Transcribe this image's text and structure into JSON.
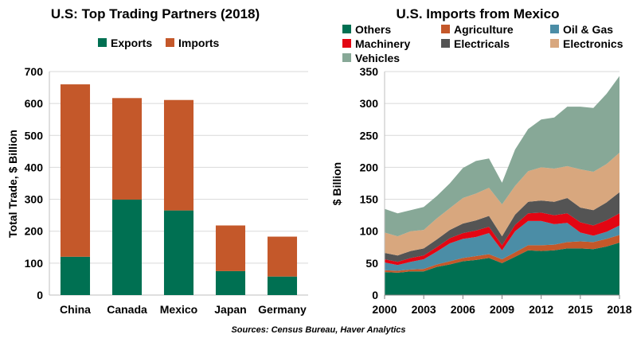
{
  "source": "Sources: Census Bureau, Haver Analytics",
  "chart_data": [
    {
      "type": "bar",
      "stacked": true,
      "title": "U.S: Top Trading Partners (2018)",
      "ylabel": "Total Trade, $ Billion",
      "ylim": [
        0,
        700
      ],
      "yticks": [
        "0",
        "100",
        "200",
        "300",
        "400",
        "500",
        "600",
        "700"
      ],
      "categories": [
        "China",
        "Canada",
        "Mexico",
        "Japan",
        "Germany"
      ],
      "legend_position": "top",
      "grid": "horizontal",
      "series": [
        {
          "name": "Exports",
          "color": "#007052",
          "values": [
            120,
            299,
            265,
            75,
            58
          ]
        },
        {
          "name": "Imports",
          "color": "#C4582A",
          "values": [
            540,
            318,
            346,
            143,
            125
          ]
        }
      ]
    },
    {
      "type": "area",
      "stacked": true,
      "title": "U.S. Imports from Mexico",
      "ylabel": "$ Billion",
      "ylim": [
        0,
        350
      ],
      "yticks": [
        "0",
        "50",
        "100",
        "150",
        "200",
        "250",
        "300",
        "350"
      ],
      "xticks": [
        "2000",
        "2003",
        "2006",
        "2009",
        "2012",
        "2015",
        "2018"
      ],
      "x": [
        2000,
        2001,
        2002,
        2003,
        2004,
        2005,
        2006,
        2007,
        2008,
        2009,
        2010,
        2011,
        2012,
        2013,
        2014,
        2015,
        2016,
        2017,
        2018
      ],
      "legend_position": "top",
      "grid": "horizontal",
      "series": [
        {
          "name": "Others",
          "color": "#007052",
          "values": [
            36,
            35,
            37,
            37,
            44,
            48,
            53,
            55,
            58,
            50,
            60,
            70,
            69,
            70,
            73,
            73,
            72,
            76,
            82
          ]
        },
        {
          "name": "Agriculture",
          "color": "#C4582A",
          "values": [
            3,
            3,
            3,
            4,
            4,
            5,
            5,
            6,
            6,
            6,
            7,
            8,
            9,
            9,
            10,
            11,
            11,
            12,
            12
          ]
        },
        {
          "name": "Oil & Gas",
          "color": "#4B8DA6",
          "values": [
            12,
            9,
            12,
            15,
            20,
            28,
            30,
            30,
            33,
            14,
            33,
            38,
            38,
            32,
            30,
            14,
            10,
            11,
            15
          ]
        },
        {
          "name": "Machinery",
          "color": "#E30613",
          "values": [
            5,
            5,
            6,
            6,
            7,
            8,
            9,
            10,
            10,
            8,
            10,
            12,
            13,
            14,
            15,
            16,
            16,
            18,
            19
          ]
        },
        {
          "name": "Electricals",
          "color": "#545454",
          "values": [
            10,
            10,
            11,
            11,
            12,
            13,
            15,
            16,
            17,
            14,
            16,
            18,
            19,
            21,
            24,
            23,
            24,
            28,
            33
          ]
        },
        {
          "name": "Electronics",
          "color": "#D8A77E",
          "values": [
            32,
            30,
            31,
            29,
            33,
            34,
            40,
            42,
            44,
            50,
            45,
            48,
            52,
            52,
            50,
            60,
            60,
            60,
            62
          ]
        },
        {
          "name": "Vehicles",
          "color": "#87A897",
          "values": [
            37,
            36,
            33,
            36,
            35,
            39,
            47,
            51,
            46,
            34,
            57,
            66,
            75,
            80,
            93,
            98,
            100,
            110,
            120
          ]
        }
      ]
    }
  ]
}
